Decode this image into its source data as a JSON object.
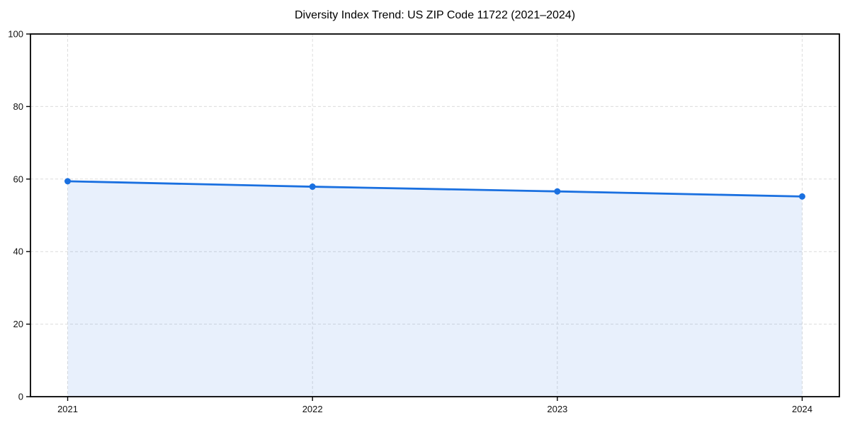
{
  "chart_data": {
    "type": "area",
    "title": "Diversity Index Trend: US ZIP Code 11722 (2021–2024)",
    "x": [
      2021,
      2022,
      2023,
      2024
    ],
    "series": [
      {
        "name": "Diversity Index",
        "values": [
          59.4,
          57.9,
          56.6,
          55.2
        ]
      }
    ],
    "xlabel": "",
    "ylabel": "",
    "ylim": [
      0,
      100
    ],
    "yticks": [
      0,
      20,
      40,
      60,
      80,
      100
    ],
    "grid": "dashed gridlines on both axes",
    "legend": "none",
    "marker": "circle",
    "colors": {
      "line": "#1a70e0",
      "fill": "rgba(26,112,224,0.10)",
      "grid": "#dcdcdc",
      "spine": "#000000",
      "tick_label": "#111111",
      "background": "#ffffff"
    }
  }
}
